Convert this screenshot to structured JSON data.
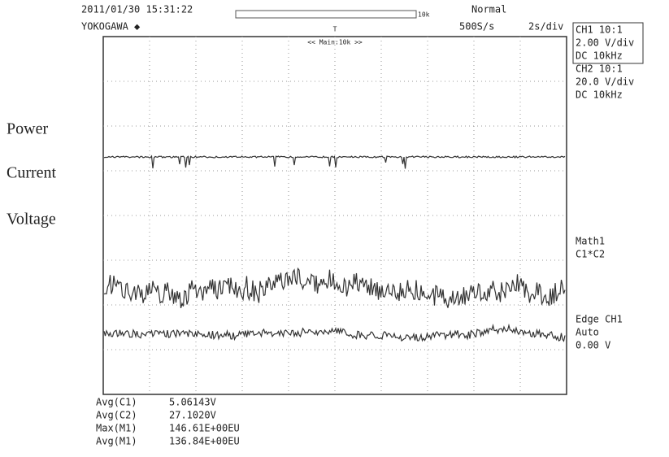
{
  "header": {
    "timestamp": "2011/01/30 15:31:22",
    "brand": "YOKOGAWA ◆",
    "record_length": "10k",
    "trigger_mode": "Normal",
    "sample_rate": "500S/s",
    "time_div": "2s/div",
    "zoom": "<< Main:10k >>",
    "trigger_marker": "T"
  },
  "labels": [
    "Power",
    "Current",
    "Voltage"
  ],
  "channels": [
    {
      "name": "CH1 10:1",
      "scale": "2.00 V/div",
      "coupling": "DC   10kHz"
    },
    {
      "name": "CH2 10:1",
      "scale": "20.0 V/div",
      "coupling": "DC   10kHz"
    }
  ],
  "math": {
    "name": "Math1",
    "expr": "C1*C2"
  },
  "trigger": {
    "source": "Edge CH1",
    "mode": "Auto",
    "level": "0.00 V"
  },
  "measurements": [
    {
      "label": "Avg(C1)",
      "value": "5.06143V"
    },
    {
      "label": "Avg(C2)",
      "value": "27.1020V"
    },
    {
      "label": "Max(M1)",
      "value": "146.61E+00EU"
    },
    {
      "label": "Avg(M1)",
      "value": "136.84E+00EU"
    }
  ]
}
